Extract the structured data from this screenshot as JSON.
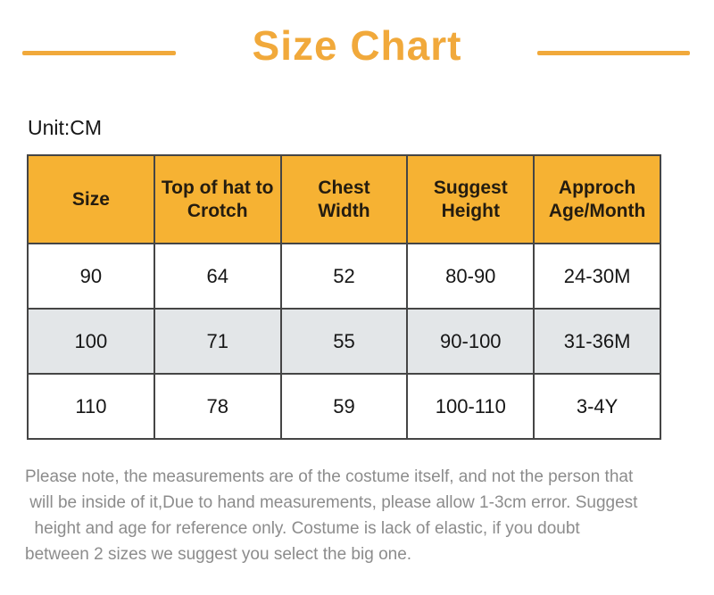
{
  "title": "Size Chart",
  "unit_label": "Unit:CM",
  "colors": {
    "accent": "#F1A93B",
    "header_bg": "#F6B233",
    "header_text": "#241C10",
    "body_text": "#161616",
    "stripe": "#E3E6E8",
    "border": "#454545",
    "note_text": "#8C8C8C"
  },
  "chart_data": {
    "type": "table",
    "title": "Size Chart",
    "unit": "CM",
    "columns": [
      "Size",
      "Top of hat to Crotch",
      "Chest Width",
      "Suggest Height",
      "Approch Age/Month"
    ],
    "header_display": [
      "Size",
      "Top of hat to\nCrotch",
      "Chest\nWidth",
      "Suggest\nHeight",
      "Approch\nAge/Month"
    ],
    "rows": [
      [
        "90",
        "64",
        "52",
        "80-90",
        "24-30M"
      ],
      [
        "100",
        "71",
        "55",
        "90-100",
        "31-36M"
      ],
      [
        "110",
        "78",
        "59",
        "100-110",
        "3-4Y"
      ]
    ],
    "note_lines": [
      "Please note, the measurements are of the costume itself, and not the person that",
      " will be inside of it,Due to hand measurements, please allow 1-3cm error. Suggest",
      "  height and age for reference only. Costume is lack of elastic, if you doubt",
      "between 2 sizes we suggest you select the big one."
    ]
  }
}
